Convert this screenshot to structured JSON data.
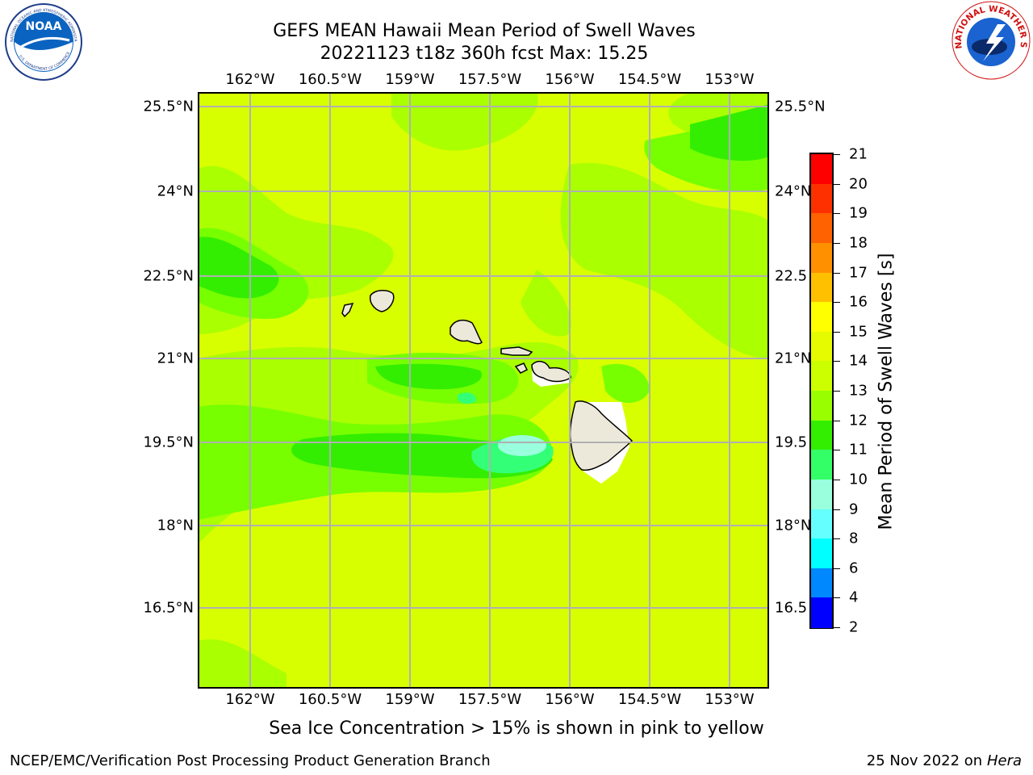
{
  "title": {
    "line1": "GEFS MEAN Hawaii Mean Period of Swell Waves",
    "line2": "20221123 t18z 360h fcst   Max: 15.25"
  },
  "logos": {
    "left": "noaa-logo",
    "right": "nws-logo",
    "left_text": "NOAA",
    "left_ring_text": "NATIONAL OCEANIC AND ATMOSPHERIC ADMINISTRATION",
    "left_ring_text_bottom": "U.S. DEPARTMENT OF COMMERCE",
    "right_ring_text": "NATIONAL WEATHER SERVICE"
  },
  "axes": {
    "lon_ticks": [
      "162°W",
      "160.5°W",
      "159°W",
      "157.5°W",
      "156°W",
      "154.5°W",
      "153°W"
    ],
    "lat_ticks_left": [
      "25.5°N",
      "24°N",
      "22.5°N",
      "21°N",
      "19.5°N",
      "18°N",
      "16.5°N"
    ],
    "lat_ticks_right": [
      "25.5°N",
      "24°N",
      "22.5",
      "21°N",
      "19.5",
      "18°N",
      "16.5"
    ]
  },
  "colorbar": {
    "title": "Mean Period of Swell Waves [s]",
    "levels": [
      "21",
      "20",
      "19",
      "18",
      "17",
      "16",
      "15",
      "14",
      "13",
      "12",
      "11",
      "10",
      "9",
      "8",
      "6",
      "4",
      "2"
    ],
    "colors": [
      "#ff0000",
      "#ff3000",
      "#ff6200",
      "#ff9000",
      "#ffc000",
      "#ffff00",
      "#e6fa00",
      "#ccff00",
      "#99ff00",
      "#33ee00",
      "#33ff66",
      "#99ffdd",
      "#66ffff",
      "#00ffff",
      "#0088ff",
      "#0000ff"
    ]
  },
  "field_colors": {
    "band_14_15": "#d8ff00",
    "band_13_14": "#aaff00",
    "band_12_13": "#77ff00",
    "band_11_12": "#33ee00",
    "band_10_11": "#33ff77",
    "band_9_10": "#99ffdd",
    "land": "#ede9da",
    "nodata": "#ffffff"
  },
  "notes": {
    "ice": "Sea Ice Concentration > 15% is shown in pink to yellow",
    "footer_left": "NCEP/EMC/Verification Post Processing Product Generation Branch",
    "footer_date": "25 Nov 2022 on",
    "footer_host": "Hera"
  }
}
